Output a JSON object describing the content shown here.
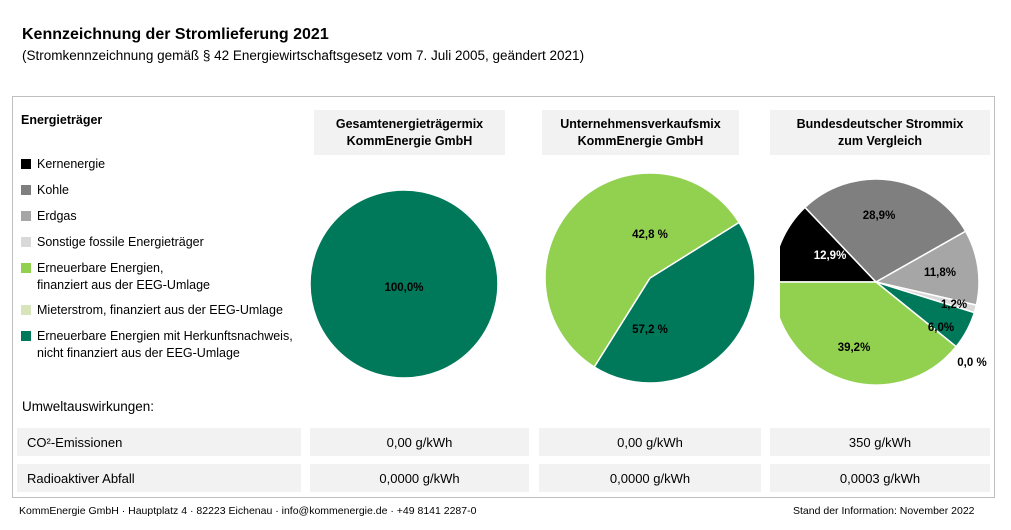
{
  "title": "Kennzeichnung der Stromlieferung 2021",
  "subtitle": "(Stromkennzeichnung  gemäß § 42 Energiewirtschaftsgesetz vom 7. Juli 2005, geändert 2021)",
  "legend": {
    "heading": "Energieträger",
    "items": [
      {
        "line1": "Kernenergie",
        "line2": "",
        "color": "#000000"
      },
      {
        "line1": "Kohle",
        "line2": "",
        "color": "#7f7f7f"
      },
      {
        "line1": "Erdgas",
        "line2": "",
        "color": "#a6a6a6"
      },
      {
        "line1": "Sonstige fossile Energieträger",
        "line2": "",
        "color": "#d9d9d9"
      },
      {
        "line1": "Erneuerbare Energien,",
        "line2": "finanziert aus der EEG-Umlage",
        "color": "#92d050"
      },
      {
        "line1": "Mieterstrom, finanziert aus der EEG-Umlage",
        "line2": "",
        "color": "#d8e4bc"
      },
      {
        "line1": "Erneuerbare Energien mit Herkunftsnachweis,",
        "line2": "nicht finanziert aus der EEG-Umlage",
        "color": "#00785a"
      }
    ]
  },
  "columns": [
    {
      "line1": "Gesamtenergieträgermix",
      "line2": "KommEnergie GmbH"
    },
    {
      "line1": "Unternehmensverkaufsmix",
      "line2": "KommEnergie GmbH"
    },
    {
      "line1": "Bundesdeutscher Strommix",
      "line2": "zum Vergleich"
    }
  ],
  "chart_data": [
    {
      "type": "pie",
      "title": "Gesamtenergieträgermix KommEnergie GmbH",
      "slices": [
        {
          "name": "Erneuerbare Energien mit Herkunftsnachweis, nicht finanziert aus der EEG-Umlage",
          "value": 100.0,
          "label": "100,0%",
          "color": "#00785a"
        }
      ]
    },
    {
      "type": "pie",
      "title": "Unternehmensverkaufsmix KommEnergie GmbH",
      "slices": [
        {
          "name": "Erneuerbare Energien mit Herkunftsnachweis, nicht finanziert aus der EEG-Umlage",
          "value": 42.8,
          "label": "42,8 %",
          "color": "#00785a"
        },
        {
          "name": "Erneuerbare Energien, finanziert aus der EEG-Umlage",
          "value": 57.2,
          "label": "57,2 %",
          "color": "#92d050"
        }
      ]
    },
    {
      "type": "pie",
      "title": "Bundesdeutscher Strommix zum Vergleich",
      "slices": [
        {
          "name": "Kernenergie",
          "value": 12.9,
          "label": "12,9%",
          "color": "#000000"
        },
        {
          "name": "Kohle",
          "value": 28.9,
          "label": "28,9%",
          "color": "#7f7f7f"
        },
        {
          "name": "Erdgas",
          "value": 11.8,
          "label": "11,8%",
          "color": "#a6a6a6"
        },
        {
          "name": "Sonstige fossile Energieträger",
          "value": 1.2,
          "label": "1,2%",
          "color": "#d9d9d9"
        },
        {
          "name": "Erneuerbare Energien mit Herkunftsnachweis, nicht finanziert aus der EEG-Umlage",
          "value": 6.0,
          "label": "6,0%",
          "color": "#00785a"
        },
        {
          "name": "Mieterstrom, finanziert aus der EEG-Umlage",
          "value": 0.0,
          "label": "0,0 %",
          "color": "#d8e4bc"
        },
        {
          "name": "Erneuerbare Energien, finanziert aus der EEG-Umlage",
          "value": 39.2,
          "label": "39,2%",
          "color": "#92d050"
        }
      ]
    }
  ],
  "environment": {
    "heading": "Umweltauswirkungen:",
    "co2_label": "CO²-Emissionen",
    "co2_values": [
      "0,00 g/kWh",
      "0,00 g/kWh",
      "350 g/kWh"
    ],
    "waste_label": "Radioaktiver Abfall",
    "waste_values": [
      "0,0000 g/kWh",
      "0,0000 g/kWh",
      "0,0003 g/kWh"
    ]
  },
  "footer": {
    "company": "KommEnergie GmbH · Hauptplatz 4 · 82223 Eichenau · info@kommenergie.de · +49 8141 2287-0",
    "date": "Stand der Information: November 2022"
  }
}
